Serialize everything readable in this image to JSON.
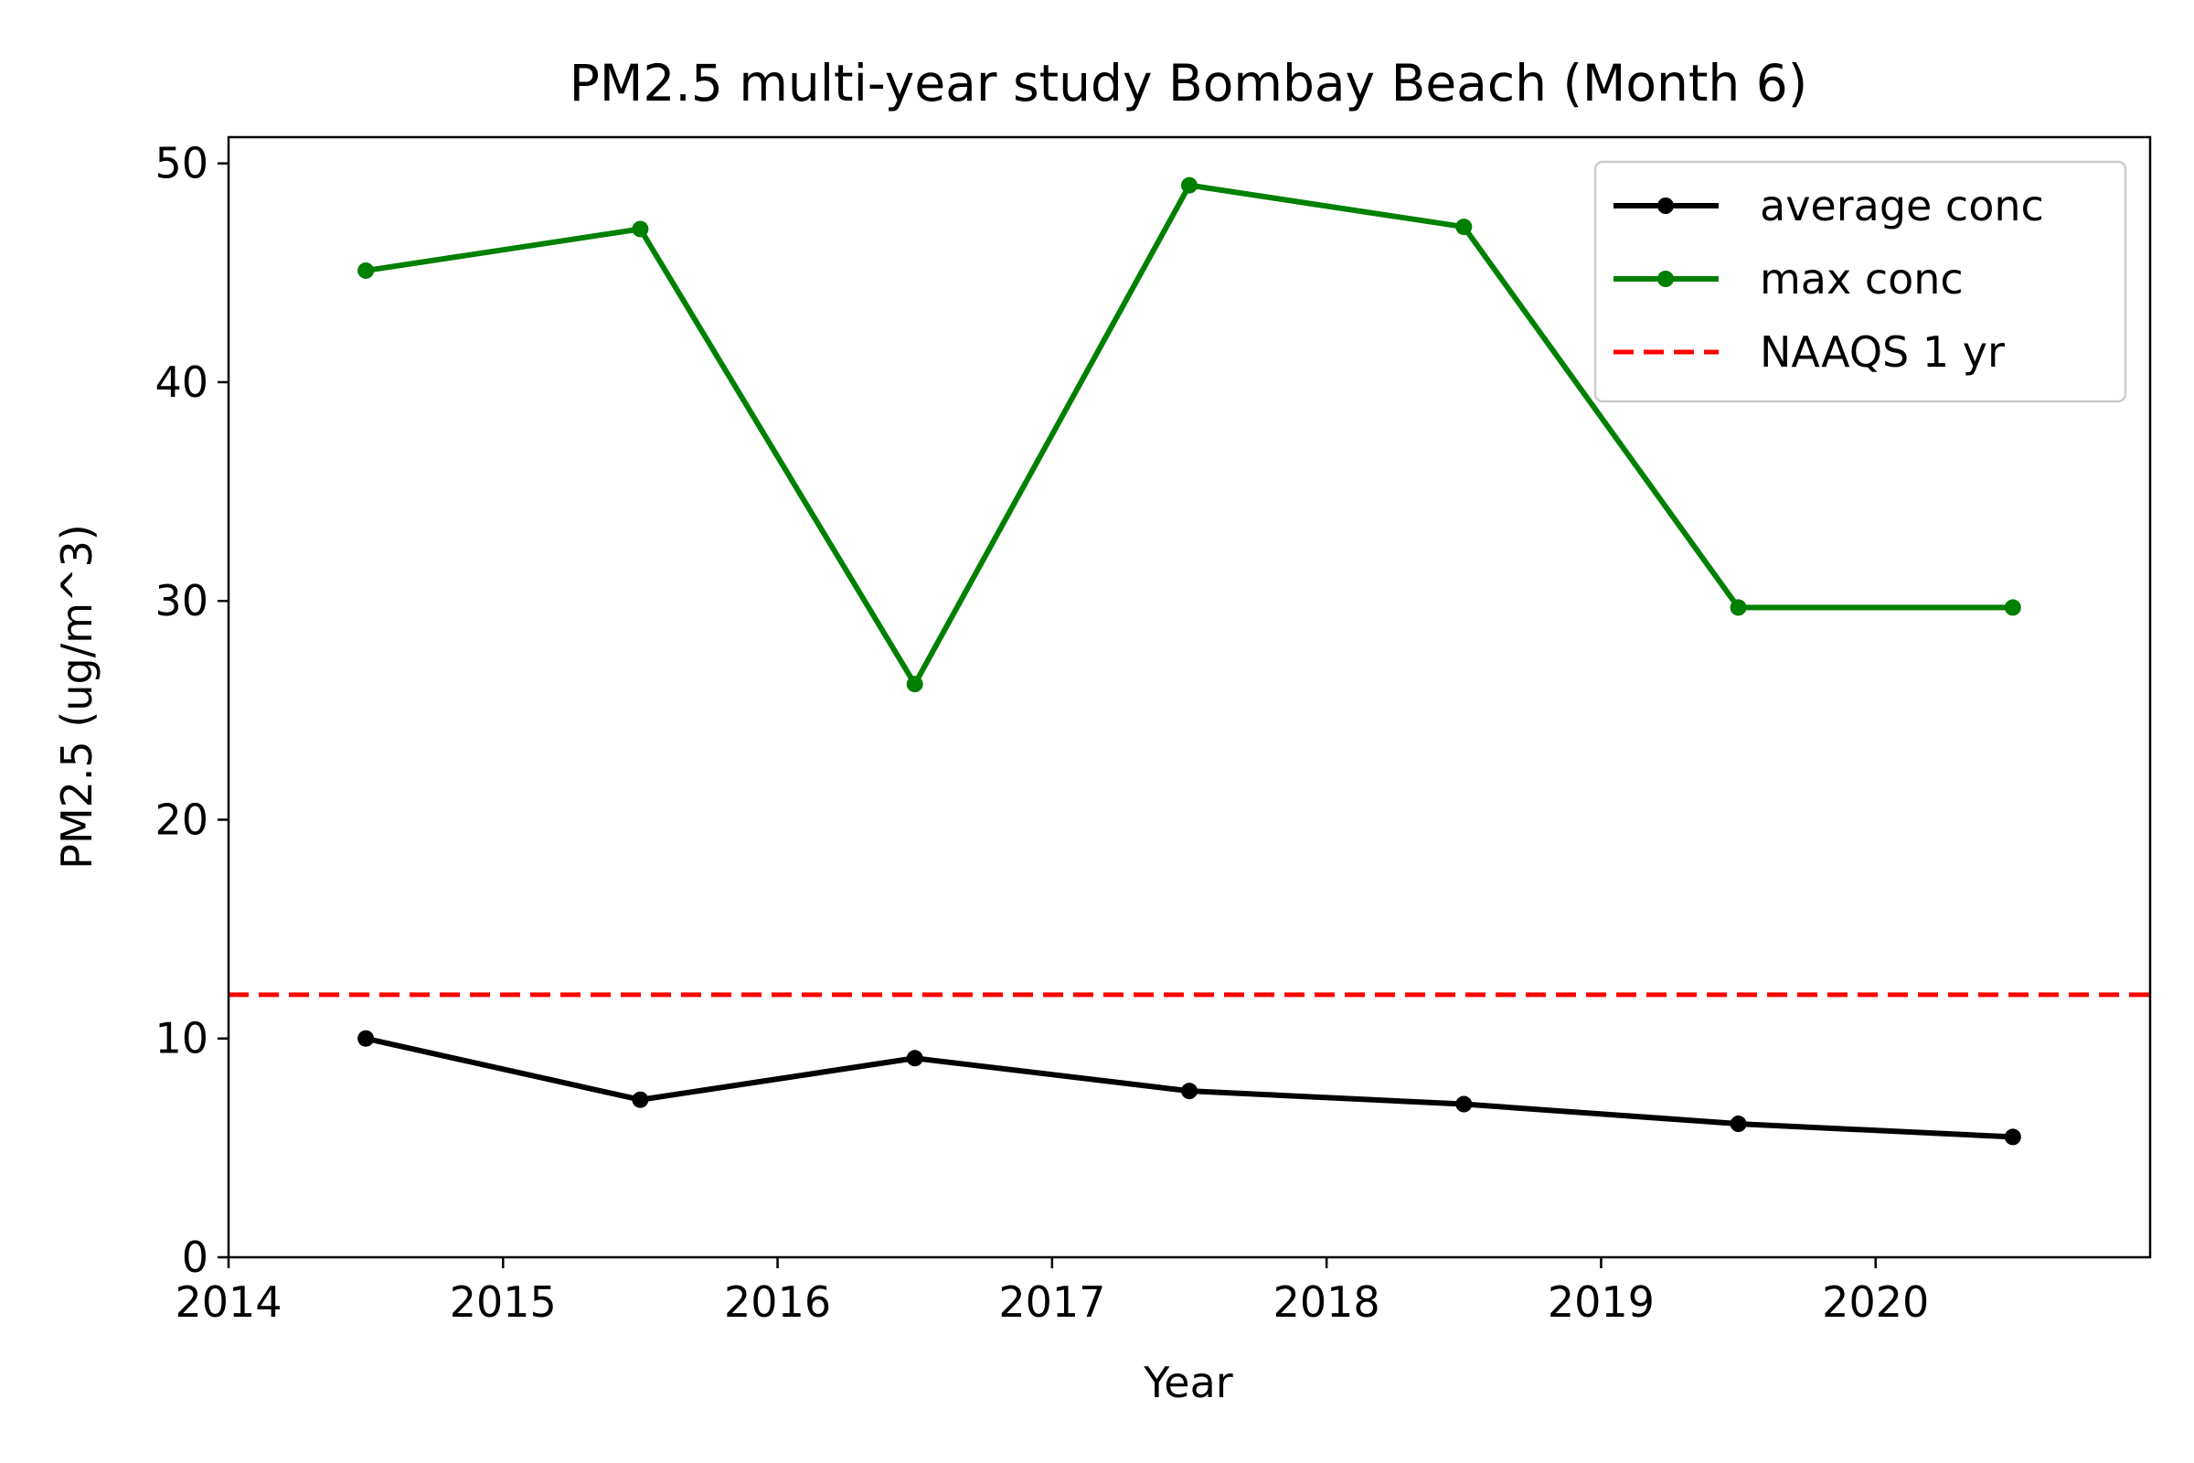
{
  "chart_data": {
    "type": "line",
    "title": "PM2.5 multi-year study Bombay Beach (Month 6)",
    "xlabel": "Year",
    "ylabel": "PM2.5 (ug/m^3)",
    "xlim": [
      2014,
      2021
    ],
    "ylim": [
      0,
      51.2
    ],
    "x_ticks": [
      2014,
      2015,
      2016,
      2017,
      2018,
      2019,
      2020
    ],
    "x_tick_labels": [
      "2014",
      "2015",
      "2016",
      "2017",
      "2018",
      "2019",
      "2020"
    ],
    "y_ticks": [
      0,
      10,
      20,
      30,
      40,
      50
    ],
    "y_tick_labels": [
      "0",
      "10",
      "20",
      "30",
      "40",
      "50"
    ],
    "grid": false,
    "legend_position": "top-right",
    "x": [
      2014.5,
      2015.5,
      2016.5,
      2017.5,
      2018.5,
      2019.5,
      2020.5
    ],
    "series": [
      {
        "name": "average conc",
        "color": "#000000",
        "values": [
          10.0,
          7.2,
          9.1,
          7.6,
          7.0,
          6.1,
          5.5
        ],
        "style": "solid-marker"
      },
      {
        "name": "max conc",
        "color": "#008000",
        "values": [
          45.1,
          47.0,
          26.2,
          49.0,
          47.1,
          29.7,
          29.7
        ],
        "style": "solid-marker"
      }
    ],
    "reference_lines": [
      {
        "name": "NAAQS 1 yr",
        "color": "#ff0000",
        "y": 12,
        "style": "dashed"
      }
    ]
  }
}
